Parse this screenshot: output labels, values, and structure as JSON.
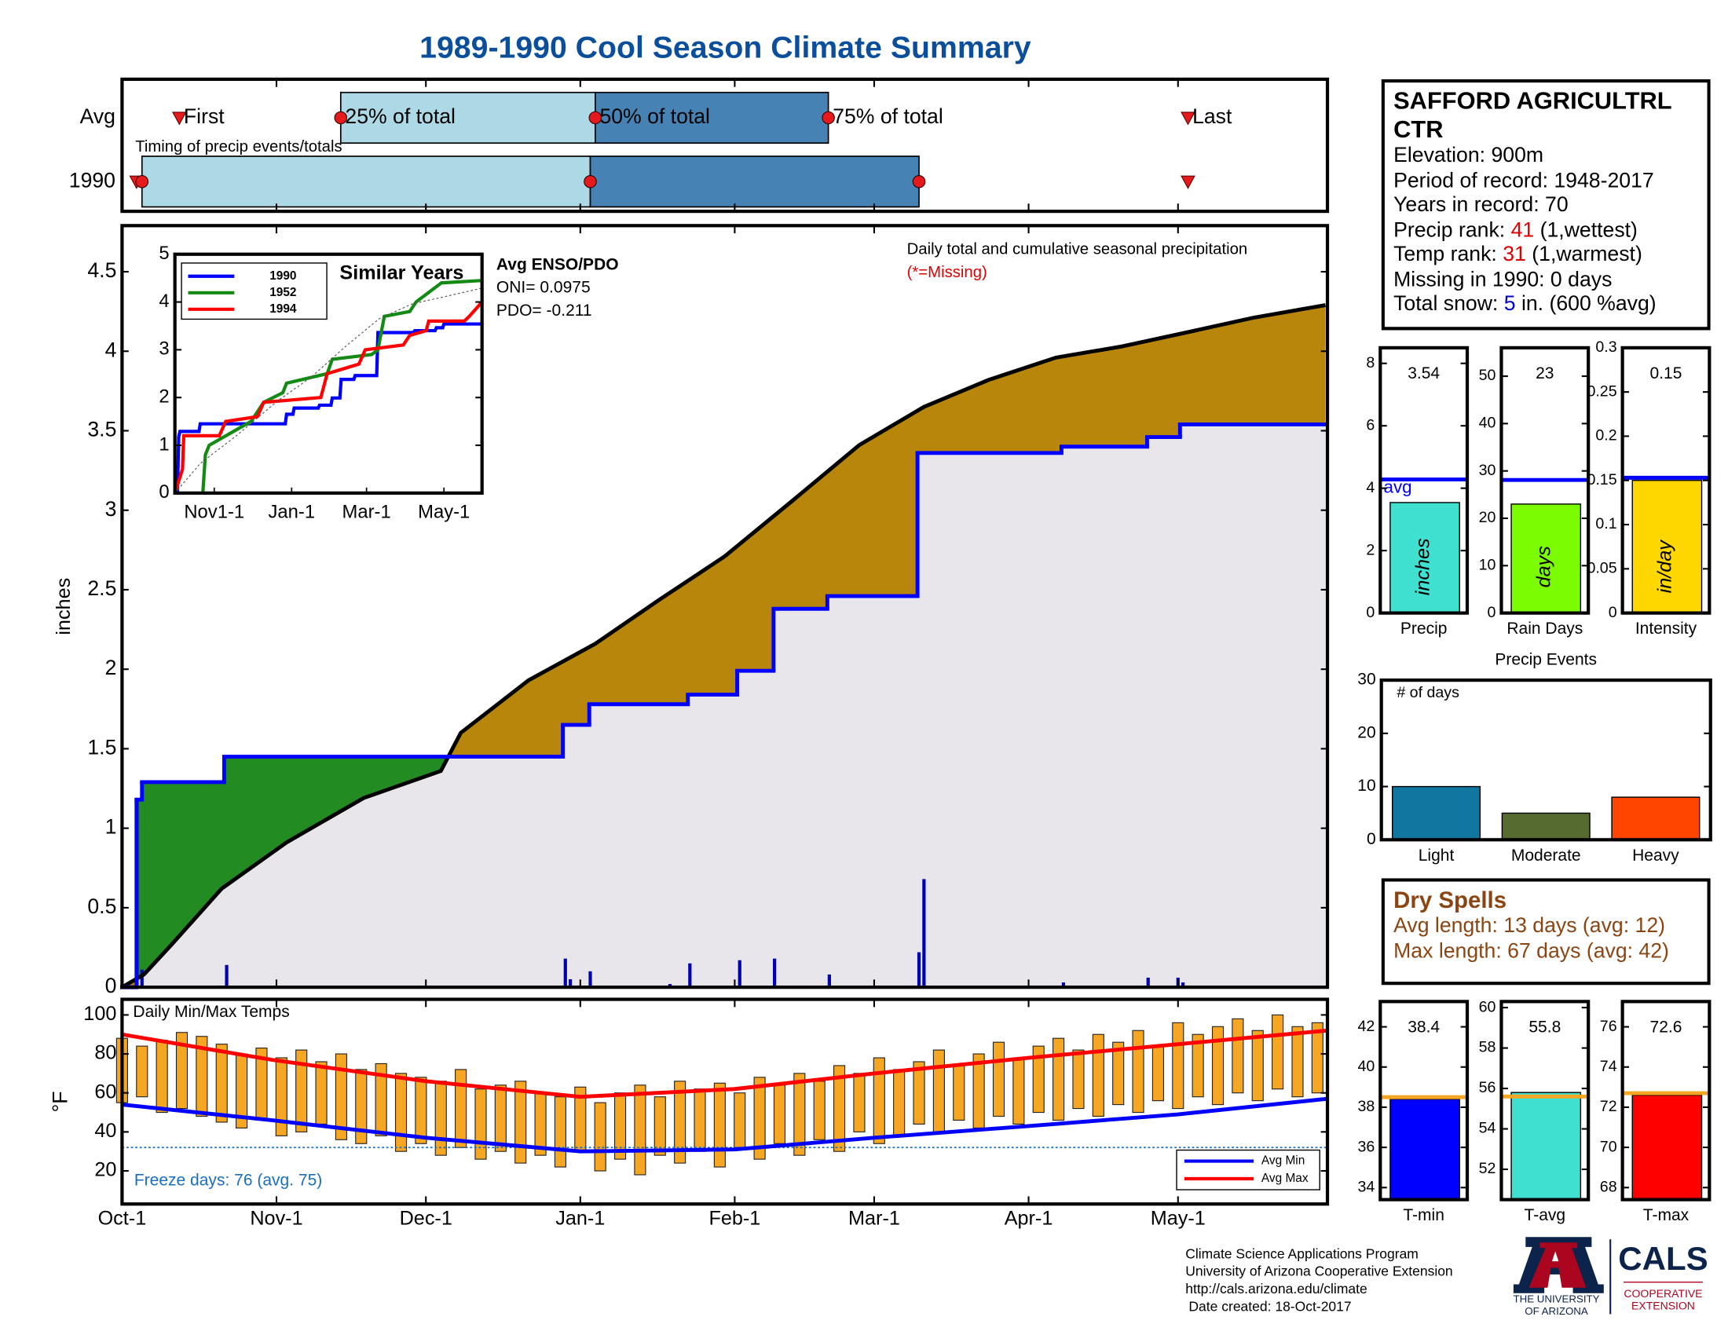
{
  "title": "1989-1990 Cool Season Climate Summary",
  "chart_data": [
    {
      "type": "timeline",
      "annotation": "Timing of precip events/totals",
      "xlim": [
        0,
        242
      ],
      "marker_labels": {
        "first": "First",
        "p25": "25% of total",
        "p50": "50% of total",
        "p75": "75% of total",
        "last": "Last"
      },
      "colors": {
        "lower": "#add8e6",
        "upper": "#4682b4",
        "marker": "#e41a1c"
      },
      "rows": [
        {
          "label": "Avg",
          "first": 11.5,
          "p25": 43.9,
          "p50": 95,
          "p75": 141.8,
          "last": 214
        },
        {
          "label": "1990",
          "first": 2.9,
          "p25": 4,
          "p50": 94,
          "p75": 160,
          "last": 214
        }
      ]
    },
    {
      "type": "cumulative",
      "ylabel": "inches",
      "annotation": "Daily total and cumulative seasonal precipitation",
      "missing_note": "(*=Missing)",
      "xlim": [
        0,
        242
      ],
      "ylim": [
        0,
        4.79
      ],
      "yticks": [
        0,
        0.5,
        1,
        1.5,
        2,
        2.5,
        3,
        3.5,
        4,
        4.5
      ],
      "fill_colors": {
        "above": "#228b22",
        "below": "#b8860b",
        "base": "#e8e6ea"
      },
      "series": [
        {
          "color": "#000000",
          "x": [
            0,
            4.4,
            10,
            20,
            33,
            48.5,
            64,
            68,
            81.6,
            95,
            108,
            121,
            134.6,
            148,
            161,
            174,
            187.5,
            200.7,
            214,
            227,
            241.6
          ],
          "values": [
            0,
            0.08,
            0.27,
            0.62,
            0.91,
            1.19,
            1.36,
            1.6,
            1.93,
            2.16,
            2.44,
            2.71,
            3.06,
            3.41,
            3.65,
            3.82,
            3.96,
            4.03,
            4.12,
            4.21,
            4.29
          ]
        },
        {
          "color": "#0000ff",
          "step": true,
          "x": [
            0,
            2.9,
            4,
            20.5,
            88.5,
            93.8,
            113.6,
            123.5,
            130.8,
            141.6,
            159.7,
            188.6,
            205.8,
            212.4,
            241.6
          ],
          "values": [
            0,
            1.18,
            1.29,
            1.45,
            1.65,
            1.78,
            1.84,
            1.99,
            2.38,
            2.46,
            3.36,
            3.4,
            3.46,
            3.54,
            3.54
          ]
        }
      ],
      "daily": {
        "color": "#0000b0",
        "x": [
          3,
          4,
          21,
          89,
          90,
          94,
          110,
          114,
          124,
          131,
          136,
          142,
          160,
          161,
          189,
          206,
          212,
          213
        ],
        "values": [
          1.18,
          0.11,
          0.14,
          0.18,
          0.05,
          0.1,
          0.02,
          0.15,
          0.17,
          0.18,
          0.01,
          0.08,
          0.22,
          0.68,
          0.03,
          0.06,
          0.06,
          0.03
        ]
      }
    },
    {
      "type": "line",
      "title": "Similar Years",
      "xlim": [
        0,
        242
      ],
      "xticks": [
        {
          "value": 31,
          "label": "Nov1-1"
        },
        {
          "value": 92,
          "label": "Jan-1"
        },
        {
          "value": 151,
          "label": "Mar-1"
        },
        {
          "value": 212,
          "label": "May-1"
        }
      ],
      "ylim": [
        0,
        5
      ],
      "yticks": [
        0,
        1,
        2,
        3,
        4,
        5
      ],
      "series": [
        {
          "name": "1990",
          "color": "#0000ff",
          "x": [
            0,
            2,
            3,
            4,
            19,
            20,
            87,
            88,
            93,
            94,
            113,
            114,
            123,
            124,
            130,
            131,
            141,
            142,
            159,
            160,
            188,
            189,
            205,
            206,
            211,
            212,
            242
          ],
          "values": [
            0,
            0,
            1.18,
            1.29,
            1.29,
            1.45,
            1.45,
            1.65,
            1.65,
            1.78,
            1.78,
            1.84,
            1.84,
            1.99,
            1.99,
            2.38,
            2.38,
            2.46,
            2.46,
            3.36,
            3.36,
            3.4,
            3.4,
            3.46,
            3.46,
            3.54,
            3.54
          ]
        },
        {
          "name": "1952",
          "color": "#138a13",
          "x": [
            22,
            24,
            27,
            60,
            70,
            85,
            88,
            120,
            124,
            155,
            160,
            165,
            185,
            190,
            210,
            242
          ],
          "values": [
            0,
            0.8,
            1.0,
            1.5,
            1.9,
            2.1,
            2.3,
            2.5,
            2.8,
            2.9,
            3.0,
            3.7,
            3.8,
            4.0,
            4.4,
            4.45
          ]
        },
        {
          "name": "1994",
          "color": "#ff0000",
          "x": [
            0,
            6,
            7,
            35,
            40,
            65,
            70,
            115,
            120,
            145,
            150,
            180,
            185,
            198,
            200,
            228,
            232,
            242
          ],
          "values": [
            0,
            0.5,
            1.2,
            1.2,
            1.5,
            1.6,
            1.9,
            2.0,
            2.5,
            2.7,
            3.0,
            3.1,
            3.3,
            3.4,
            3.6,
            3.6,
            3.7,
            4.0
          ]
        },
        {
          "color": "#555555",
          "dashed": true,
          "x": [
            0,
            20,
            48,
            81,
            108,
            134,
            161,
            187,
            214,
            242
          ],
          "values": [
            0,
            0.62,
            1.19,
            1.93,
            2.44,
            3.06,
            3.65,
            3.96,
            4.12,
            4.29
          ]
        }
      ],
      "enso": {
        "title": "Avg ENSO/PDO",
        "oni": "ONI= 0.0975",
        "pdo": "PDO= -0.211"
      }
    },
    {
      "type": "range_bar",
      "title": "Daily Min/Max Temps",
      "ylabel": "°F",
      "xlim": [
        0,
        242
      ],
      "xticks": [
        {
          "value": 0,
          "label": "Oct-1"
        },
        {
          "value": 31,
          "label": "Nov-1"
        },
        {
          "value": 61,
          "label": "Dec-1"
        },
        {
          "value": 92,
          "label": "Jan-1"
        },
        {
          "value": 123,
          "label": "Feb-1"
        },
        {
          "value": 151,
          "label": "Mar-1"
        },
        {
          "value": 182,
          "label": "Apr-1"
        },
        {
          "value": 212,
          "label": "May-1"
        }
      ],
      "ylim": [
        3,
        108
      ],
      "yticks": [
        20,
        40,
        60,
        80,
        100
      ],
      "bar_color": "#f5a623",
      "x": [
        0,
        4,
        8,
        12,
        16,
        20,
        24,
        28,
        32,
        36,
        40,
        44,
        48,
        52,
        56,
        60,
        64,
        68,
        72,
        76,
        80,
        84,
        88,
        92,
        96,
        100,
        104,
        108,
        112,
        116,
        120,
        124,
        128,
        132,
        136,
        140,
        144,
        148,
        152,
        156,
        160,
        164,
        168,
        172,
        176,
        180,
        184,
        188,
        192,
        196,
        200,
        204,
        208,
        212,
        216,
        220,
        224,
        228,
        232,
        236,
        240
      ],
      "max": [
        88,
        84,
        87,
        91,
        89,
        85,
        80,
        83,
        78,
        82,
        76,
        80,
        72,
        75,
        70,
        68,
        66,
        72,
        62,
        64,
        66,
        60,
        58,
        63,
        55,
        60,
        64,
        58,
        66,
        62,
        65,
        60,
        68,
        64,
        70,
        66,
        74,
        70,
        78,
        72,
        76,
        82,
        74,
        80,
        86,
        78,
        84,
        88,
        82,
        90,
        86,
        92,
        84,
        96,
        90,
        94,
        98,
        92,
        100,
        94,
        96
      ],
      "min": [
        55,
        58,
        50,
        52,
        48,
        45,
        42,
        46,
        38,
        40,
        44,
        36,
        34,
        38,
        30,
        34,
        28,
        32,
        26,
        30,
        24,
        28,
        22,
        30,
        20,
        26,
        18,
        28,
        24,
        30,
        22,
        32,
        26,
        34,
        28,
        36,
        30,
        40,
        34,
        38,
        44,
        40,
        46,
        42,
        48,
        44,
        50,
        46,
        52,
        48,
        54,
        50,
        56,
        52,
        58,
        54,
        60,
        56,
        62,
        58,
        60
      ],
      "series": [
        {
          "name": "Avg Min",
          "color": "#0000ff",
          "x": [
            0,
            30,
            61,
            92,
            123,
            151,
            182,
            212,
            242
          ],
          "values": [
            54,
            46,
            37,
            30,
            31,
            37,
            43,
            49,
            57
          ]
        },
        {
          "name": "Avg Max",
          "color": "#ff0000",
          "x": [
            0,
            30,
            61,
            92,
            123,
            151,
            182,
            212,
            242
          ],
          "values": [
            90,
            77,
            66,
            58,
            62,
            70,
            78,
            85,
            92
          ]
        }
      ],
      "freeze": {
        "value": 32,
        "color": "#1a6fc0",
        "label": "Freeze days: 76 (avg. 75)"
      }
    },
    {
      "type": "gauge_bar",
      "xlabel": "Precip",
      "unit_label": "inches",
      "value": 3.54,
      "avg": 4.28,
      "avg_label": "avg",
      "color": "#40e0d0",
      "avg_color": "#0000ff",
      "ylim": [
        0,
        8.5
      ],
      "yticks": [
        0,
        2,
        4,
        6,
        8
      ]
    },
    {
      "type": "gauge_bar",
      "xlabel": "Rain Days",
      "unit_label": "days",
      "value": 23,
      "avg": 28.1,
      "color": "#7cfc00",
      "avg_color": "#0000ff",
      "ylim": [
        0,
        56
      ],
      "yticks": [
        0,
        10,
        20,
        30,
        40,
        50
      ]
    },
    {
      "type": "gauge_bar",
      "xlabel": "Intensity",
      "unit_label": "in/day",
      "value": 0.15,
      "avg": 0.153,
      "color": "#ffd700",
      "avg_color": "#0000ff",
      "ylim": [
        0,
        0.3
      ],
      "yticks": [
        0,
        0.05,
        0.1,
        0.15,
        0.2,
        0.25,
        0.3
      ]
    },
    {
      "type": "bar",
      "title": "Precip Events",
      "annotation": "# of days",
      "categories": [
        "Light",
        "Moderate",
        "Heavy"
      ],
      "values": [
        10,
        5,
        8
      ],
      "colors": [
        "#1177a0",
        "#556b2f",
        "#ff4500"
      ],
      "ylim": [
        0,
        30
      ],
      "yticks": [
        0,
        10,
        20,
        30
      ]
    },
    {
      "type": "gauge_bar",
      "xlabel": "T-min",
      "value": 38.4,
      "avg": 38.5,
      "color": "#0000ff",
      "avg_color": "#f5a623",
      "ylim": [
        33.4,
        43.26
      ],
      "yticks": [
        34,
        36,
        38,
        40,
        42
      ]
    },
    {
      "type": "gauge_bar",
      "xlabel": "T-avg",
      "value": 55.8,
      "avg": 55.6,
      "color": "#40e0d0",
      "avg_color": "#f5a623",
      "ylim": [
        50.5,
        60.3
      ],
      "yticks": [
        52,
        54,
        56,
        58,
        60
      ]
    },
    {
      "type": "gauge_bar",
      "xlabel": "T-max",
      "value": 72.6,
      "avg": 72.7,
      "color": "#ff0000",
      "avg_color": "#f5a623",
      "ylim": [
        67.4,
        77.26
      ],
      "yticks": [
        68,
        70,
        72,
        74,
        76
      ]
    }
  ],
  "station": {
    "name": "SAFFORD AGRICULTRL CTR",
    "lines": [
      "Elevation: 900m",
      "Period of record: 1948-2017",
      "Years in record: 70"
    ],
    "precip_rank": {
      "label": "Precip rank:",
      "value": 41,
      "note": "(1,wettest)"
    },
    "temp_rank": {
      "label": "Temp rank:",
      "value": 31,
      "note": "(1,warmest)"
    },
    "missing": "Missing in 1990: 0 days",
    "snow": {
      "label": "Total snow:",
      "value": 5,
      "note": "in. (600 %avg)"
    }
  },
  "dry_spells": {
    "title": "Dry Spells",
    "avg": "Avg length: 13 days (avg: 12)",
    "max": "Max length: 67 days (avg: 42)"
  },
  "footer": {
    "lines": [
      "Climate Science Applications Program",
      "University of Arizona Cooperative Extension",
      "http://cals.arizona.edu/climate",
      "Date created: 18-Oct-2017"
    ],
    "ua": [
      "THE UNIVERSITY",
      "OF ARIZONA"
    ],
    "cals": "CALS",
    "cals_sub": [
      "COOPERATIVE",
      "EXTENSION"
    ]
  }
}
